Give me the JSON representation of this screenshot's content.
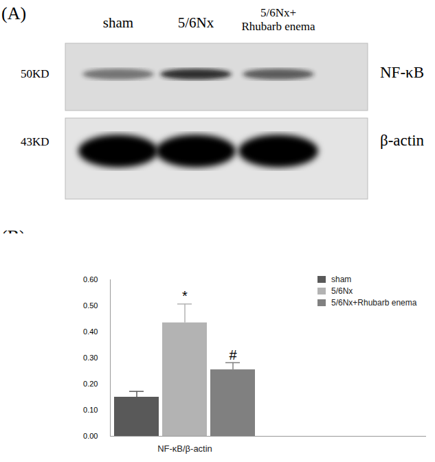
{
  "blot": {
    "label": "(A)",
    "lanes": [
      [
        "sham"
      ],
      [
        "5/6Nx"
      ],
      [
        "5/6Nx+",
        "Rhubarb enema"
      ]
    ],
    "bands": [
      {
        "name": "NF-κB",
        "size": "50KD"
      },
      {
        "name": "β-actin",
        "size": "43KD"
      }
    ]
  },
  "chart_data": {
    "type": "bar",
    "label": "(B)",
    "x_label": "NF-κB/β-actin",
    "categories": [
      "sham",
      "5/6Nx",
      "5/6Nx+Rhubarb enema"
    ],
    "values": [
      0.15,
      0.435,
      0.255
    ],
    "errors": [
      0.022,
      0.072,
      0.027
    ],
    "annotations": [
      null,
      "*",
      "#"
    ],
    "colors": [
      "#595959",
      "#b3b3b3",
      "#808080"
    ],
    "ylim": [
      0,
      0.6
    ],
    "yticks": [
      0,
      0.1,
      0.2,
      0.3,
      0.4,
      0.5,
      0.6
    ],
    "legend": "right",
    "tick_labels": "y"
  }
}
